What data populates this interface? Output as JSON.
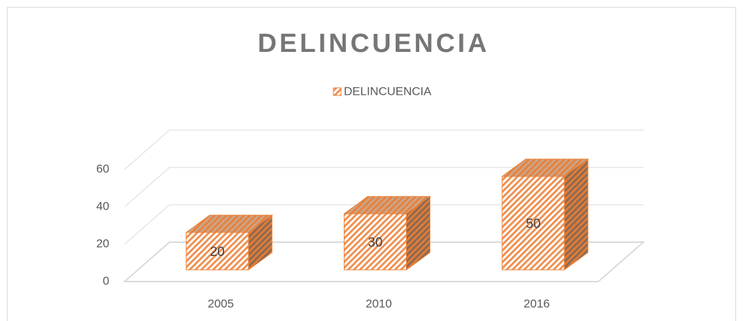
{
  "chart_data": {
    "type": "bar3d",
    "title": "DELINCUENCIA",
    "categories": [
      "2005",
      "2010",
      "2016"
    ],
    "series": [
      {
        "name": "DELINCUENCIA",
        "color": "#ed7d31",
        "values": [
          20,
          30,
          50
        ]
      }
    ],
    "ylim": [
      0,
      60
    ],
    "yticks": [
      0,
      20,
      40,
      60
    ],
    "grid": true,
    "legend": "top"
  }
}
